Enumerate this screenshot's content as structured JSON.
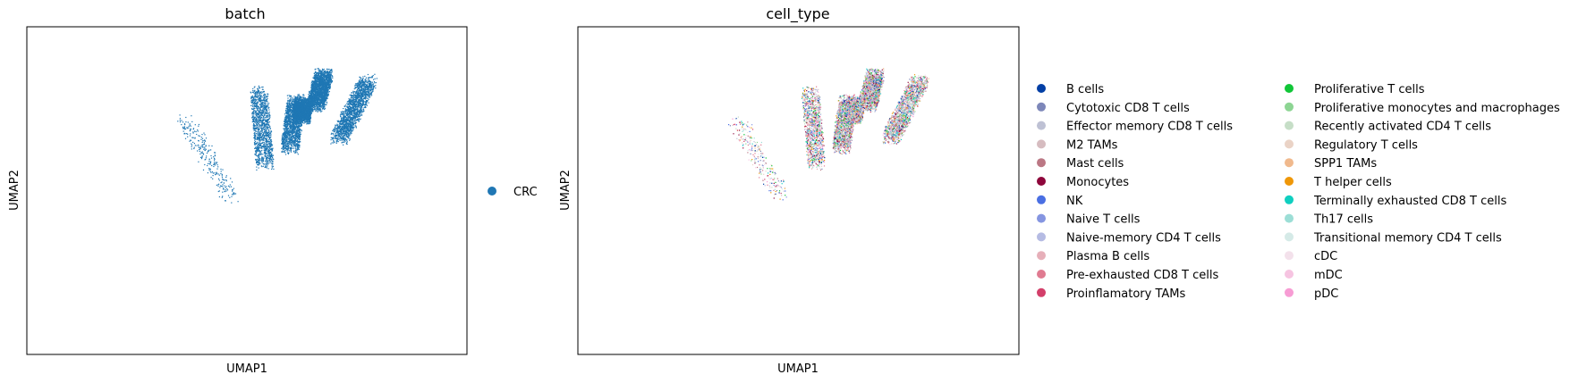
{
  "chart_data": [
    {
      "type": "scatter",
      "title": "batch",
      "xlabel": "UMAP1",
      "ylabel": "UMAP2",
      "grid": false,
      "ticks": false,
      "legend_position": "right",
      "series": [
        {
          "name": "CRC",
          "color": "#1f77b4"
        }
      ]
    },
    {
      "type": "scatter",
      "title": "cell_type",
      "xlabel": "UMAP1",
      "ylabel": "UMAP2",
      "grid": false,
      "ticks": false,
      "legend_position": "right",
      "legend_columns": 2,
      "series": [
        {
          "name": "B cells",
          "color": "#023fa5"
        },
        {
          "name": "Cytotoxic CD8 T cells",
          "color": "#7d87b9"
        },
        {
          "name": "Effector memory CD8 T cells",
          "color": "#bec1d4"
        },
        {
          "name": "M2 TAMs",
          "color": "#d6bcc0"
        },
        {
          "name": "Mast cells",
          "color": "#bb7784"
        },
        {
          "name": "Monocytes",
          "color": "#8e063b"
        },
        {
          "name": "NK",
          "color": "#4a6fe3"
        },
        {
          "name": "Naive T cells",
          "color": "#8595e1"
        },
        {
          "name": "Naive-memory CD4 T cells",
          "color": "#b5bbe3"
        },
        {
          "name": "Plasma B cells",
          "color": "#e6afb9"
        },
        {
          "name": "Pre-exhausted CD8 T cells",
          "color": "#e07b91"
        },
        {
          "name": "Proinflamatory TAMs",
          "color": "#d33f6a"
        },
        {
          "name": "Proliferative T cells",
          "color": "#11c638"
        },
        {
          "name": "Proliferative monocytes and macrophages",
          "color": "#8dd593"
        },
        {
          "name": "Recently activated CD4 T cells",
          "color": "#c6dec7"
        },
        {
          "name": "Regulatory T cells",
          "color": "#ead3c6"
        },
        {
          "name": "SPP1 TAMs",
          "color": "#f0b98d"
        },
        {
          "name": "T helper cells",
          "color": "#ef9708"
        },
        {
          "name": "Terminally exhausted CD8 T cells",
          "color": "#0fcfc0"
        },
        {
          "name": "Th17 cells",
          "color": "#9cded6"
        },
        {
          "name": "Transitional memory CD4 T cells",
          "color": "#d5eae7"
        },
        {
          "name": "cDC",
          "color": "#f3e1eb"
        },
        {
          "name": "mDC",
          "color": "#f6c4e1"
        },
        {
          "name": "pDC",
          "color": "#f79cd4"
        }
      ]
    }
  ]
}
